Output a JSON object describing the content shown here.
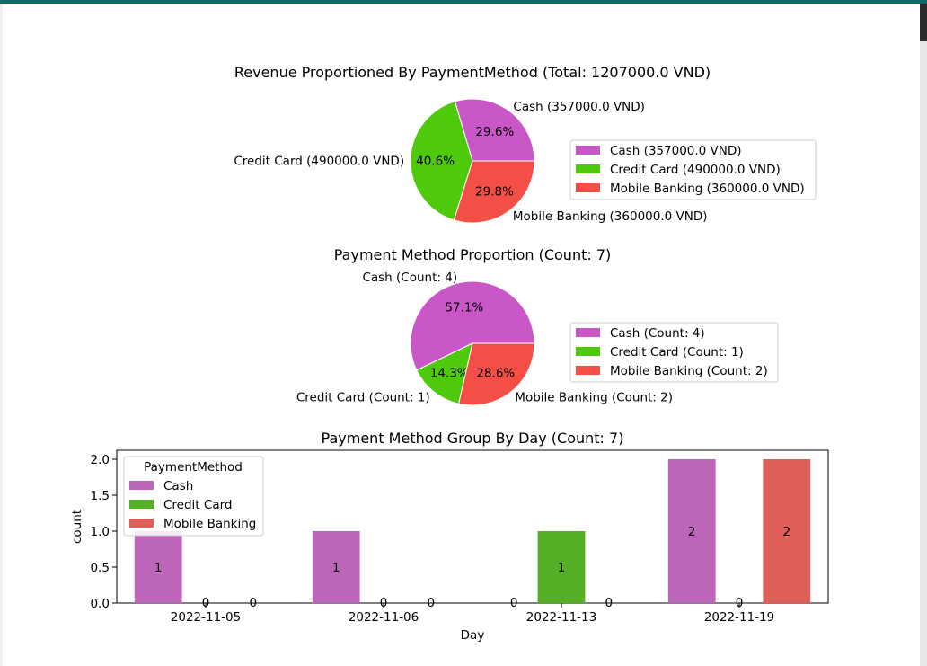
{
  "colors": {
    "cash_pie": "#c957c7",
    "credit_pie": "#4fc90c",
    "mobile_pie": "#f44f47",
    "cash_bar": "#bd66b9",
    "credit_bar": "#55b027",
    "mobile_bar": "#de6058",
    "window_accent": "#0f6b68"
  },
  "chart_data": [
    {
      "type": "pie",
      "title": "Revenue Proportioned By PaymentMethod (Total: 1207000.0 VND)",
      "labels": [
        "Cash (357000.0 VND)",
        "Credit Card (490000.0 VND)",
        "Mobile Banking (360000.0 VND)"
      ],
      "values": [
        357000.0,
        490000.0,
        360000.0
      ],
      "percent_labels": [
        "29.6%",
        "40.6%",
        "29.8%"
      ],
      "legend": [
        "Cash (357000.0 VND)",
        "Credit Card (490000.0 VND)",
        "Mobile Banking (360000.0 VND)"
      ],
      "legend_placement": "right"
    },
    {
      "type": "pie",
      "title": "Payment Method Proportion (Count: 7)",
      "labels": [
        "Cash (Count: 4)",
        "Credit Card (Count: 1)",
        "Mobile Banking (Count: 2)"
      ],
      "values": [
        4,
        1,
        2
      ],
      "percent_labels": [
        "57.1%",
        "14.3%",
        "28.6%"
      ],
      "legend": [
        "Cash (Count: 4)",
        "Credit Card (Count: 1)",
        "Mobile Banking (Count: 2)"
      ],
      "legend_placement": "right"
    },
    {
      "type": "bar",
      "title": "Payment Method Group By Day (Count: 7)",
      "xlabel": "Day",
      "ylabel": "count",
      "categories": [
        "2022-11-05",
        "2022-11-06",
        "2022-11-13",
        "2022-11-19"
      ],
      "series": [
        {
          "name": "Cash",
          "values": [
            1,
            1,
            0,
            2
          ]
        },
        {
          "name": "Credit Card",
          "values": [
            0,
            0,
            1,
            0
          ]
        },
        {
          "name": "Mobile Banking",
          "values": [
            0,
            0,
            0,
            2
          ]
        }
      ],
      "ylim": [
        0,
        2.0
      ],
      "yticks": [
        "0.0",
        "0.5",
        "1.0",
        "1.5",
        "2.0"
      ],
      "legend_title": "PaymentMethod",
      "legend_placement": "top-left",
      "grid": false
    }
  ]
}
